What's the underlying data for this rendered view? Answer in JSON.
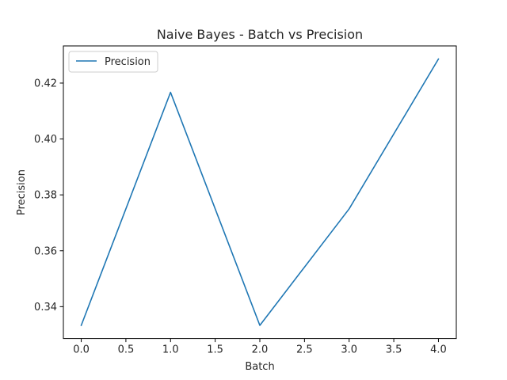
{
  "chart_data": {
    "type": "line",
    "title": "Naive Bayes - Batch vs Precision",
    "xlabel": "Batch",
    "ylabel": "Precision",
    "xlim": [
      -0.2,
      4.2
    ],
    "ylim": [
      0.3286,
      0.4333
    ],
    "xticks": [
      0.0,
      0.5,
      1.0,
      1.5,
      2.0,
      2.5,
      3.0,
      3.5,
      4.0
    ],
    "xtick_labels": [
      "0.0",
      "0.5",
      "1.0",
      "1.5",
      "2.0",
      "2.5",
      "3.0",
      "3.5",
      "4.0"
    ],
    "yticks": [
      0.34,
      0.36,
      0.38,
      0.4,
      0.42
    ],
    "ytick_labels": [
      "0.34",
      "0.36",
      "0.38",
      "0.40",
      "0.42"
    ],
    "grid": false,
    "legend_position": "top-left",
    "series": [
      {
        "name": "Precision",
        "color": "#1f77b4",
        "x": [
          0,
          1,
          2,
          3,
          4
        ],
        "y": [
          0.3333,
          0.4167,
          0.3333,
          0.375,
          0.4286
        ]
      }
    ]
  }
}
